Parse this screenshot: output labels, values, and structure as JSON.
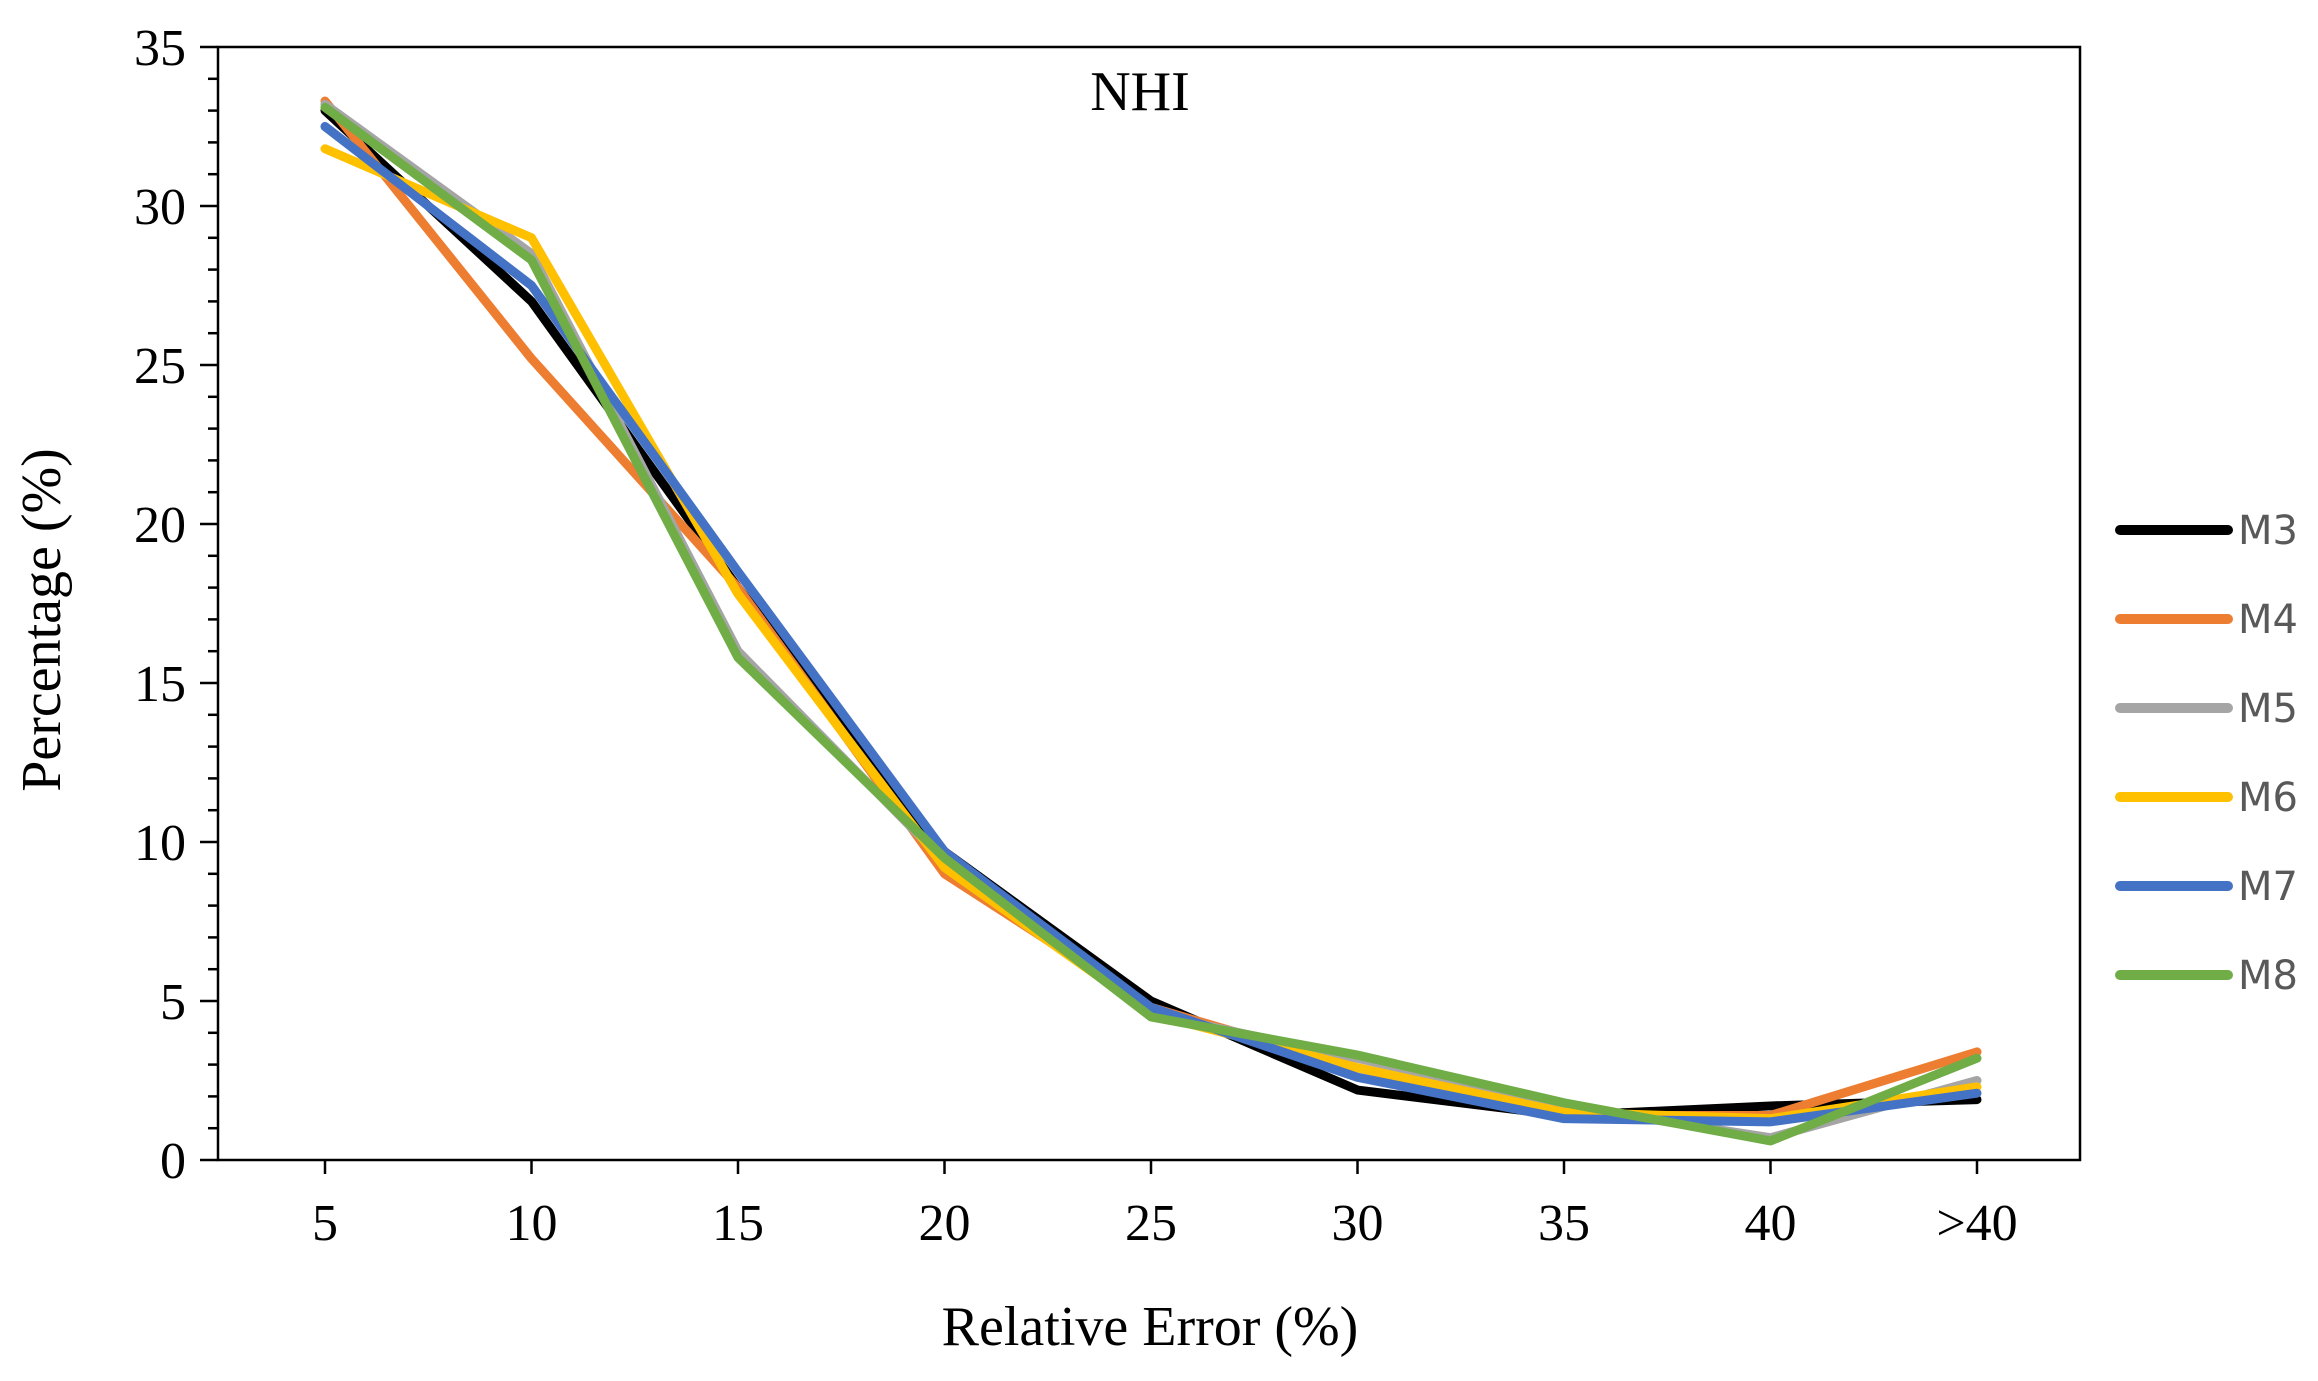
{
  "chart_data": {
    "type": "line",
    "title": "NHI",
    "xlabel": "Relative Error (%)",
    "ylabel": "Percentage (%)",
    "categories": [
      "5",
      "10",
      "15",
      "20",
      "25",
      "30",
      "35",
      "40",
      ">40"
    ],
    "ylim": [
      0,
      35
    ],
    "yticks": [
      "0",
      "5",
      "10",
      "15",
      "20",
      "25",
      "30",
      "35"
    ],
    "grid": false,
    "legend_position": "right",
    "series": [
      {
        "name": "M3",
        "color": "#000000",
        "values": [
          33.0,
          27.0,
          18.0,
          9.7,
          5.0,
          2.2,
          1.4,
          1.7,
          1.9
        ]
      },
      {
        "name": "M4",
        "color": "#ED7D31",
        "values": [
          33.3,
          25.2,
          18.0,
          9.0,
          4.8,
          2.9,
          1.4,
          1.4,
          3.4
        ]
      },
      {
        "name": "M5",
        "color": "#A5A5A5",
        "values": [
          33.2,
          28.5,
          16.0,
          9.4,
          4.6,
          3.2,
          1.7,
          0.7,
          2.5
        ]
      },
      {
        "name": "M6",
        "color": "#FFC000",
        "values": [
          31.8,
          29.0,
          17.8,
          9.2,
          4.6,
          2.9,
          1.5,
          1.3,
          2.3
        ]
      },
      {
        "name": "M7",
        "color": "#4472C4",
        "values": [
          32.5,
          27.5,
          18.5,
          9.7,
          4.8,
          2.6,
          1.3,
          1.2,
          2.1
        ]
      },
      {
        "name": "M8",
        "color": "#70AD47",
        "values": [
          33.1,
          28.3,
          15.8,
          9.5,
          4.5,
          3.3,
          1.8,
          0.6,
          3.2
        ]
      }
    ]
  }
}
